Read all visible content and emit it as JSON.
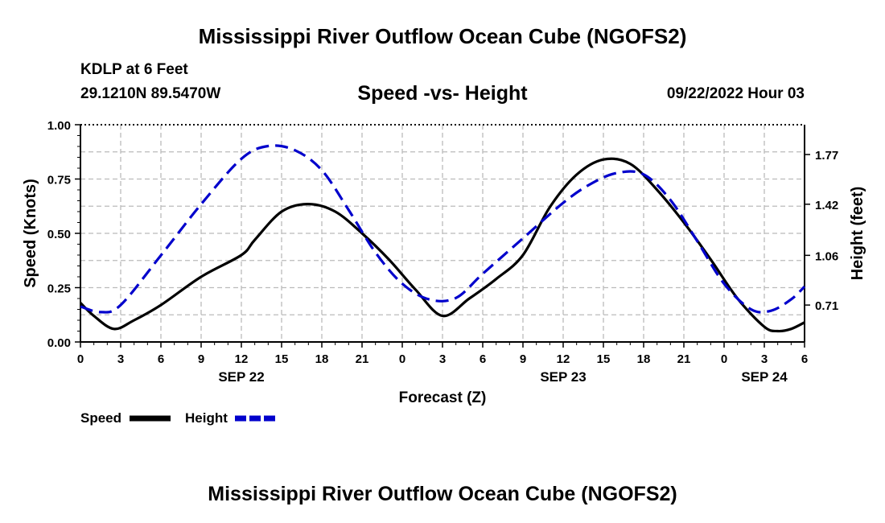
{
  "header": {
    "title": "Mississippi River Outflow Ocean Cube (NGOFS2)",
    "station": "KDLP at 6 Feet",
    "coordinates": "29.1210N  89.5470W",
    "datetime": "09/22/2022 Hour 03"
  },
  "footer": {
    "title": "Mississippi River Outflow Ocean Cube (NGOFS2)"
  },
  "legend": {
    "speed_label": "Speed",
    "height_label": "Height"
  },
  "chart_data": {
    "type": "line",
    "title": "Speed -vs- Height",
    "xlabel": "Forecast (Z)",
    "ylabel": "Speed (Knots)",
    "y2label": "Height (feet)",
    "xlim": [
      0,
      54
    ],
    "ylim": [
      0,
      1.0
    ],
    "y2lim": [
      0.45,
      1.98
    ],
    "x_ticks": [
      0,
      3,
      6,
      9,
      12,
      15,
      18,
      21,
      24,
      27,
      30,
      33,
      36,
      39,
      42,
      45,
      48,
      51,
      54
    ],
    "x_tick_labels": [
      "0",
      "3",
      "6",
      "9",
      "12",
      "15",
      "18",
      "21",
      "0",
      "3",
      "6",
      "9",
      "12",
      "15",
      "18",
      "21",
      "0",
      "3",
      "6"
    ],
    "date_labels": [
      {
        "x": 12,
        "label": "SEP 22"
      },
      {
        "x": 36,
        "label": "SEP 23"
      },
      {
        "x": 51,
        "label": "SEP 24"
      }
    ],
    "y_ticks": [
      0.0,
      0.25,
      0.5,
      0.75,
      1.0
    ],
    "y_tick_labels": [
      "0.00",
      "0.25",
      "0.50",
      "0.75",
      "1.00"
    ],
    "y2_ticks": [
      0.71,
      1.06,
      1.42,
      1.77
    ],
    "y2_tick_labels": [
      "0.71",
      "1.06",
      "1.42",
      "1.77"
    ],
    "grid": true,
    "series": [
      {
        "name": "Speed",
        "axis": "left",
        "color": "#000000",
        "style": "solid",
        "x": [
          0,
          1,
          2.5,
          4,
          6,
          9,
          12,
          13,
          15,
          17,
          19,
          21,
          23,
          25,
          27,
          29,
          31,
          33,
          35,
          37,
          39,
          41,
          43,
          45,
          47,
          49,
          51,
          52,
          53,
          54
        ],
        "y": [
          0.18,
          0.12,
          0.06,
          0.1,
          0.17,
          0.3,
          0.4,
          0.47,
          0.6,
          0.635,
          0.6,
          0.5,
          0.38,
          0.24,
          0.12,
          0.2,
          0.29,
          0.4,
          0.62,
          0.77,
          0.84,
          0.82,
          0.7,
          0.55,
          0.38,
          0.2,
          0.07,
          0.05,
          0.06,
          0.09
        ]
      },
      {
        "name": "Height",
        "axis": "right",
        "color": "#0000cc",
        "style": "dashed",
        "x": [
          0,
          1.5,
          3,
          6,
          9,
          12,
          14,
          16,
          18,
          20,
          22,
          24,
          26,
          28,
          30,
          33,
          36,
          38,
          40,
          42,
          44,
          46,
          48,
          50,
          51.5,
          53,
          54
        ],
        "y": [
          0.7,
          0.66,
          0.71,
          1.06,
          1.42,
          1.74,
          1.83,
          1.8,
          1.66,
          1.38,
          1.08,
          0.86,
          0.75,
          0.76,
          0.93,
          1.18,
          1.43,
          1.56,
          1.64,
          1.63,
          1.45,
          1.16,
          0.86,
          0.68,
          0.67,
          0.75,
          0.84
        ]
      }
    ]
  }
}
